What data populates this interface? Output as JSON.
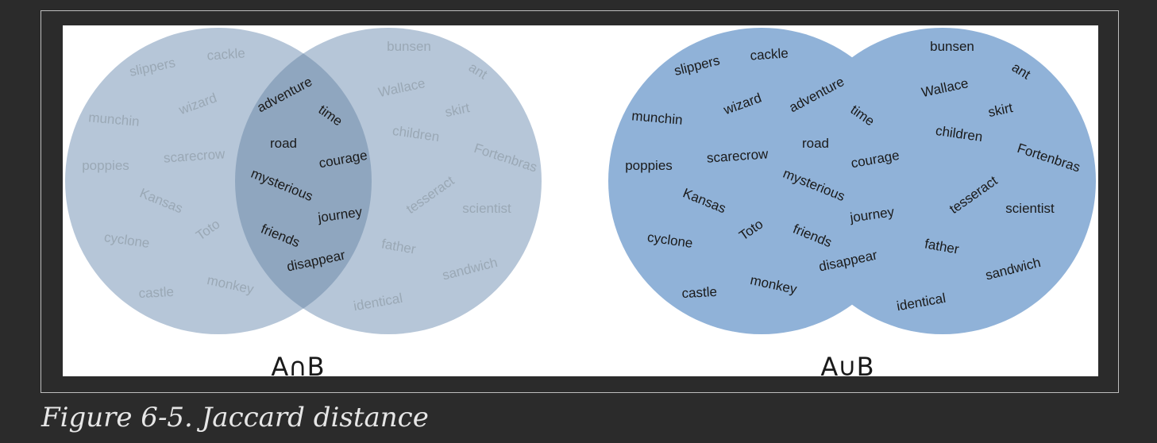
{
  "caption": "Figure 6-5. Jaccard distance",
  "colors": {
    "background": "#2b2b2b",
    "panel": "#ffffff",
    "frame_border": "#bdbdbd",
    "intersection_circle": "#b6c6d8",
    "intersection_overlap": "#8fa6bf",
    "union_fill": "#90b2d8",
    "faded_word": "#9aa8b5",
    "dark_word": "#1a1a1a",
    "caption_text": "#e6e6e6"
  },
  "left_diagram": {
    "label": "A∩B",
    "words_a_only": [
      "slippers",
      "cackle",
      "munchin",
      "wizard",
      "poppies",
      "scarecrow",
      "Kansas",
      "cyclone",
      "Toto",
      "castle",
      "monkey"
    ],
    "words_shared": [
      "adventure",
      "time",
      "road",
      "courage",
      "mysterious",
      "journey",
      "friends",
      "disappear"
    ],
    "words_b_only": [
      "bunsen",
      "ant",
      "Wallace",
      "skirt",
      "children",
      "Fortenbras",
      "tesseract",
      "scientist",
      "father",
      "sandwich",
      "identical"
    ]
  },
  "right_diagram": {
    "label": "A∪B",
    "words": [
      "slippers",
      "cackle",
      "munchin",
      "wizard",
      "adventure",
      "time",
      "road",
      "courage",
      "poppies",
      "scarecrow",
      "mysterious",
      "Kansas",
      "journey",
      "cyclone",
      "Toto",
      "friends",
      "disappear",
      "castle",
      "monkey",
      "bunsen",
      "ant",
      "Wallace",
      "skirt",
      "children",
      "Fortenbras",
      "tesseract",
      "scientist",
      "father",
      "sandwich",
      "identical"
    ]
  }
}
